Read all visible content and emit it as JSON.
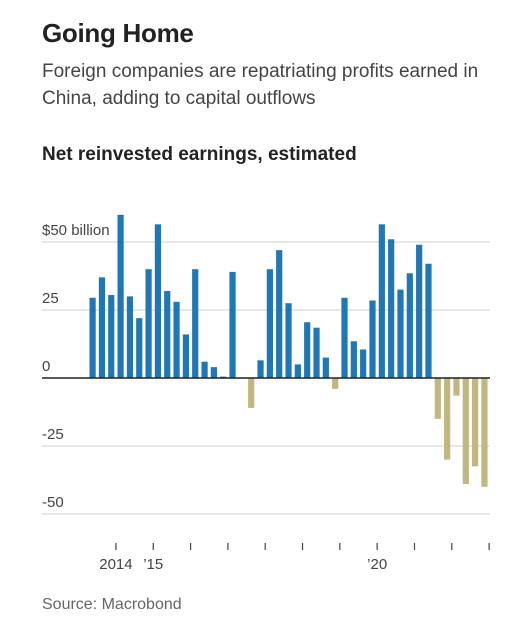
{
  "title": "Going Home",
  "subtitle": "Foreign companies are repatriating profits earned in China, adding to capital outflows",
  "source": "Source: Macrobond",
  "colors": {
    "positive": "#1f77b4",
    "negative": "#c2b77f",
    "grid": "#cfcfcf",
    "axis": "#222222"
  },
  "chart_data": {
    "type": "bar",
    "title": "Net reinvested earnings, estimated",
    "ylabel": "",
    "xlabel": "",
    "ylim": [
      -50,
      60
    ],
    "grid": true,
    "y_ticks": [
      {
        "value": 50,
        "label": "$50 billion"
      },
      {
        "value": 25,
        "label": "25"
      },
      {
        "value": 0,
        "label": "0"
      },
      {
        "value": -25,
        "label": "-25"
      },
      {
        "value": -50,
        "label": "-50"
      }
    ],
    "x_ticks": [
      {
        "label": "2014",
        "at": 2.5
      },
      {
        "label": "’15",
        "at": 6.5
      },
      {
        "label": "",
        "at": 10.5
      },
      {
        "label": "",
        "at": 14.5
      },
      {
        "label": "",
        "at": 18.5
      },
      {
        "label": "",
        "at": 22.5
      },
      {
        "label": "",
        "at": 26.5
      },
      {
        "label": "’20",
        "at": 30.5
      },
      {
        "label": "",
        "at": 34.5
      },
      {
        "label": "",
        "at": 38.5
      },
      {
        "label": "",
        "at": 42.5
      }
    ],
    "values": [
      29.5,
      37,
      30.5,
      60,
      30,
      22,
      40,
      56.5,
      32,
      28,
      16,
      40,
      6,
      4,
      0.5,
      39,
      0,
      -11,
      6.5,
      40,
      47,
      27.5,
      5,
      20.5,
      18.5,
      7.5,
      -4,
      29.5,
      13.5,
      10.5,
      28.5,
      56.5,
      51,
      32.5,
      38.5,
      49,
      42,
      -15,
      -30,
      -6.5,
      -39,
      -32.5,
      -40
    ]
  }
}
